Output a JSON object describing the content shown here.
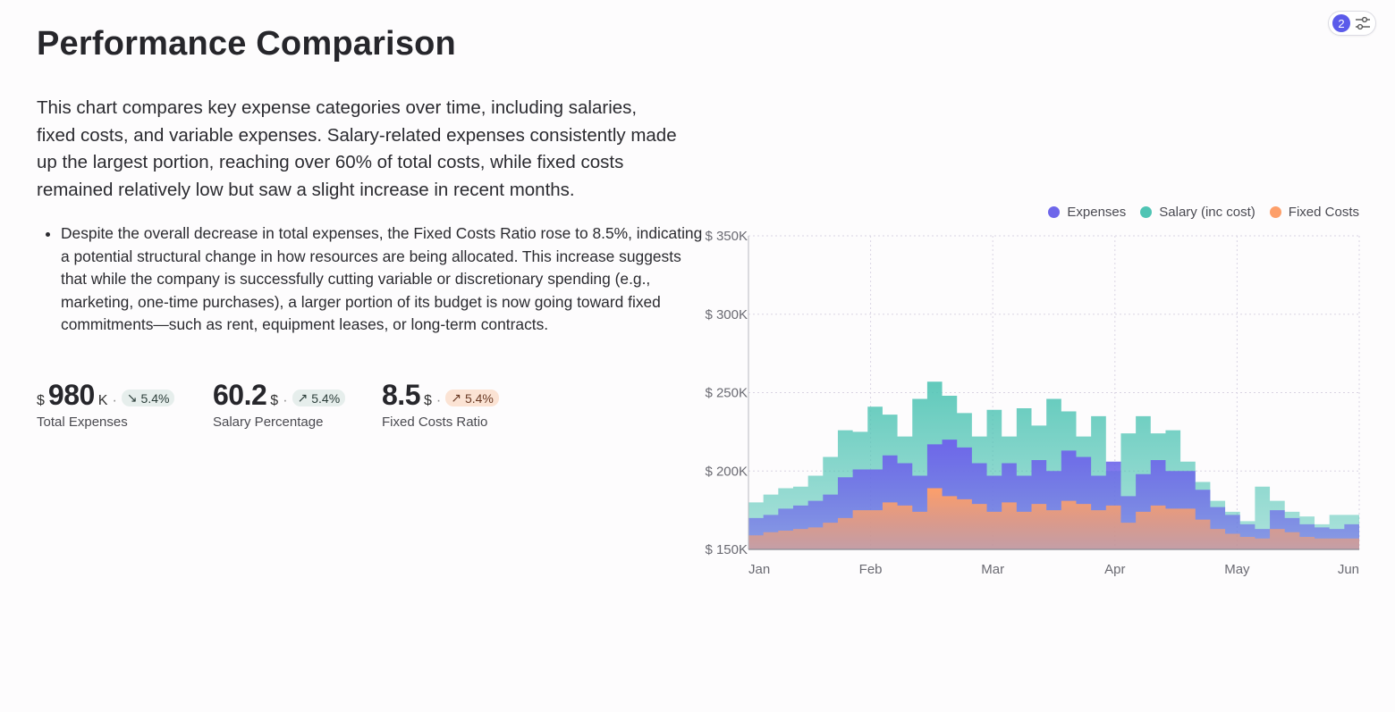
{
  "page": {
    "title": "Performance Comparison",
    "description": "This chart compares key expense categories over time, including salaries, fixed costs, and variable expenses. Salary-related expenses consistently made up the largest portion, reaching over 60% of total costs, while fixed costs remained relatively low but saw a slight increase in recent months.",
    "bullets": [
      "Despite the overall decrease in total expenses, the Fixed Costs Ratio rose to 8.5%, indicating a potential structural change in how resources are being allocated. This increase suggests that while the company is successfully cutting variable or discretionary spending (e.g., marketing, one-time purchases), a larger portion of its budget is now going toward fixed commitments—such as rent, equipment leases, or long-term contracts."
    ]
  },
  "filter": {
    "count": "2",
    "icon": "sliders-icon"
  },
  "kpis": [
    {
      "prefix": "$",
      "value": "980",
      "suffix": "K",
      "sep": "·",
      "trend_icon": "arrow-down-right-icon",
      "trend_glyph": "↘",
      "delta": "5.4%",
      "direction": "down",
      "label": "Total Expenses"
    },
    {
      "prefix": "",
      "value": "60.2",
      "suffix": "$",
      "sep": "·",
      "trend_icon": "arrow-up-right-icon",
      "trend_glyph": "↗",
      "delta": "5.4%",
      "direction": "up",
      "label": "Salary Percentage"
    },
    {
      "prefix": "",
      "value": "8.5",
      "suffix": "$",
      "sep": "·",
      "trend_icon": "arrow-up-right-icon",
      "trend_glyph": "↗",
      "delta": "5.4%",
      "direction": "up-warn",
      "label": "Fixed Costs Ratio"
    }
  ],
  "colors": {
    "expenses": "#6e66ea",
    "salary": "#4fc4b4",
    "fixed": "#fd9f6a",
    "grid": "#d9d4e3",
    "axis": "#6a6a72"
  },
  "chart_data": {
    "type": "area",
    "subtype": "stacked-step",
    "title": "",
    "xlabel": "",
    "ylabel": "",
    "x_ticks": [
      "Jan",
      "Feb",
      "Mar",
      "Apr",
      "May",
      "Jun"
    ],
    "y_ticks": [
      "$ 150K",
      "$ 200K",
      "$ 250K",
      "$ 300K",
      "$ 350K"
    ],
    "y_tick_values": [
      150000,
      200000,
      250000,
      300000,
      350000
    ],
    "ylim": [
      150000,
      350000
    ],
    "x_range": [
      0,
      40
    ],
    "x_tick_positions": [
      0,
      8,
      16,
      24,
      32,
      40
    ],
    "grid": true,
    "legend": "top-right",
    "series": [
      {
        "name": "Expenses",
        "key": "expenses",
        "top": [
          170000,
          172000,
          176000,
          178000,
          181000,
          185000,
          196000,
          201000,
          201000,
          210000,
          205000,
          197000,
          217000,
          220000,
          215000,
          205000,
          197000,
          205000,
          197000,
          207000,
          200000,
          213000,
          209000,
          197000,
          206000,
          184000,
          198000,
          207000,
          200000,
          200000,
          188000,
          177000,
          172000,
          166000,
          163000,
          175000,
          170000,
          166000,
          164000,
          163000,
          166000
        ]
      },
      {
        "name": "Salary (inc cost)",
        "key": "salary",
        "top": [
          180000,
          185000,
          189000,
          190000,
          197000,
          209000,
          226000,
          225000,
          241000,
          236000,
          222000,
          246000,
          257000,
          248000,
          237000,
          222000,
          239000,
          222000,
          240000,
          229000,
          246000,
          238000,
          222000,
          235000,
          200000,
          224000,
          235000,
          224000,
          226000,
          206000,
          193000,
          181000,
          174000,
          168000,
          190000,
          181000,
          174000,
          171000,
          166000,
          172000,
          172000
        ]
      },
      {
        "name": "Fixed Costs",
        "key": "fixed",
        "top": [
          159000,
          161000,
          162000,
          163000,
          164000,
          167000,
          170000,
          175000,
          175000,
          180000,
          178000,
          174000,
          189000,
          184000,
          182000,
          179000,
          174000,
          180000,
          174000,
          179000,
          175000,
          181000,
          179000,
          175000,
          178000,
          167000,
          174000,
          178000,
          176000,
          176000,
          169000,
          163000,
          160000,
          158000,
          157000,
          163000,
          161000,
          158000,
          157000,
          157000,
          157000
        ]
      }
    ]
  }
}
